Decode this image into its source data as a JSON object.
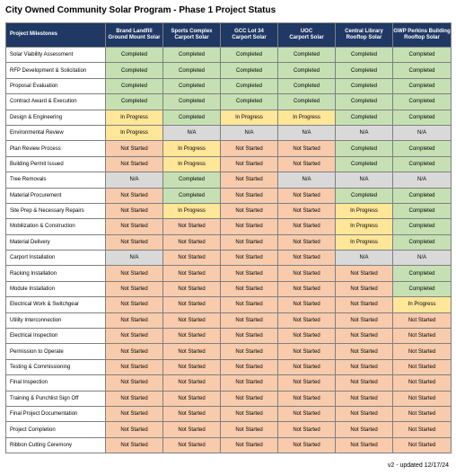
{
  "title": "City Owned Community Solar Program - Phase 1 Project Status",
  "table": {
    "header_first": "Project Milestones",
    "columns": [
      {
        "line1": "Brand Landfill",
        "line2": "Ground Mount Solar"
      },
      {
        "line1": "Sports Complex",
        "line2": "Carport Solar"
      },
      {
        "line1": "GCC Lot 34",
        "line2": "Carport Solar"
      },
      {
        "line1": "UOC",
        "line2": "Carport Solar"
      },
      {
        "line1": "Central Library",
        "line2": "Rooftop Solar"
      },
      {
        "line1": "GWP Perkins Building",
        "line2": "Rooftop Solar"
      }
    ],
    "rows": [
      {
        "milestone": "Solar Viability Assessment",
        "statuses": [
          "Completed",
          "Completed",
          "Completed",
          "Completed",
          "Completed",
          "Completed"
        ]
      },
      {
        "milestone": "RFP Development & Solicitation",
        "statuses": [
          "Completed",
          "Completed",
          "Completed",
          "Completed",
          "Completed",
          "Completed"
        ]
      },
      {
        "milestone": "Proposal Evaluation",
        "statuses": [
          "Completed",
          "Completed",
          "Completed",
          "Completed",
          "Completed",
          "Completed"
        ]
      },
      {
        "milestone": "Contract Award & Execution",
        "statuses": [
          "Completed",
          "Completed",
          "Completed",
          "Completed",
          "Completed",
          "Completed"
        ]
      },
      {
        "milestone": "Design & Engineering",
        "statuses": [
          "In Progress",
          "Completed",
          "In Progress",
          "In Progress",
          "Completed",
          "Completed"
        ]
      },
      {
        "milestone": "Environmental Review",
        "statuses": [
          "In Progress",
          "N/A",
          "N/A",
          "N/A",
          "N/A",
          "N/A"
        ]
      },
      {
        "milestone": "Plan Review Process",
        "statuses": [
          "Not Started",
          "In Progress",
          "Not Started",
          "Not Started",
          "Completed",
          "Completed"
        ]
      },
      {
        "milestone": "Building Permit Issued",
        "statuses": [
          "Not Started",
          "In Progress",
          "Not Started",
          "Not Started",
          "Completed",
          "Completed"
        ]
      },
      {
        "milestone": "Tree Removals",
        "statuses": [
          "N/A",
          "Completed",
          "Not Started",
          "N/A",
          "N/A",
          "N/A"
        ]
      },
      {
        "milestone": "Material Procurement",
        "statuses": [
          "Not Started",
          "Completed",
          "Not Started",
          "Not Started",
          "Completed",
          "Completed"
        ]
      },
      {
        "milestone": "Site Prep & Necessary Repairs",
        "statuses": [
          "Not Started",
          "In Progress",
          "Not Started",
          "Not Started",
          "In Progress",
          "Completed"
        ]
      },
      {
        "milestone": "Mobilization & Construction",
        "statuses": [
          "Not Started",
          "Not Started",
          "Not Started",
          "Not Started",
          "In Progress",
          "Completed"
        ]
      },
      {
        "milestone": "Material Delivery",
        "statuses": [
          "Not Started",
          "Not Started",
          "Not Started",
          "Not Started",
          "In Progress",
          "Completed"
        ]
      },
      {
        "milestone": "Carport Installation",
        "statuses": [
          "N/A",
          "Not Started",
          "Not Started",
          "Not Started",
          "N/A",
          "N/A"
        ]
      },
      {
        "milestone": "Racking Installation",
        "statuses": [
          "Not Started",
          "Not Started",
          "Not Started",
          "Not Started",
          "Not Started",
          "Completed"
        ]
      },
      {
        "milestone": "Module Installation",
        "statuses": [
          "Not Started",
          "Not Started",
          "Not Started",
          "Not Started",
          "Not Started",
          "Completed"
        ]
      },
      {
        "milestone": "Electrical Work & Switchgear",
        "statuses": [
          "Not Started",
          "Not Started",
          "Not Started",
          "Not Started",
          "Not Started",
          "In Progress"
        ]
      },
      {
        "milestone": "Utility Interconnection",
        "statuses": [
          "Not Started",
          "Not Started",
          "Not Started",
          "Not Started",
          "Not Started",
          "Not Started"
        ]
      },
      {
        "milestone": "Electrical Inspection",
        "statuses": [
          "Not Started",
          "Not Started",
          "Not Started",
          "Not Started",
          "Not Started",
          "Not Started"
        ]
      },
      {
        "milestone": "Permission to Operate",
        "statuses": [
          "Not Started",
          "Not Started",
          "Not Started",
          "Not Started",
          "Not Started",
          "Not Started"
        ]
      },
      {
        "milestone": "Testing & Commissioning",
        "statuses": [
          "Not Started",
          "Not Started",
          "Not Started",
          "Not Started",
          "Not Started",
          "Not Started"
        ]
      },
      {
        "milestone": "Final Inspection",
        "statuses": [
          "Not Started",
          "Not Started",
          "Not Started",
          "Not Started",
          "Not Started",
          "Not Started"
        ]
      },
      {
        "milestone": "Training & Punchlist Sign Off",
        "statuses": [
          "Not Started",
          "Not Started",
          "Not Started",
          "Not Started",
          "Not Started",
          "Not Started"
        ]
      },
      {
        "milestone": "Final Project Documentation",
        "statuses": [
          "Not Started",
          "Not Started",
          "Not Started",
          "Not Started",
          "Not Started",
          "Not Started"
        ]
      },
      {
        "milestone": "Project Completion",
        "statuses": [
          "Not Started",
          "Not Started",
          "Not Started",
          "Not Started",
          "Not Started",
          "Not Started"
        ]
      },
      {
        "milestone": "Ribbon Cutting Ceremony",
        "statuses": [
          "Not Started",
          "Not Started",
          "Not Started",
          "Not Started",
          "Not Started",
          "Not Started"
        ]
      }
    ]
  },
  "status_colors": {
    "Completed": "#c6e0b4",
    "In Progress": "#ffe699",
    "N/A": "#d9d9d9",
    "Not Started": "#f8cbad"
  },
  "header_color": "#1f3864",
  "footer": "v2 - updated 12/17/24"
}
